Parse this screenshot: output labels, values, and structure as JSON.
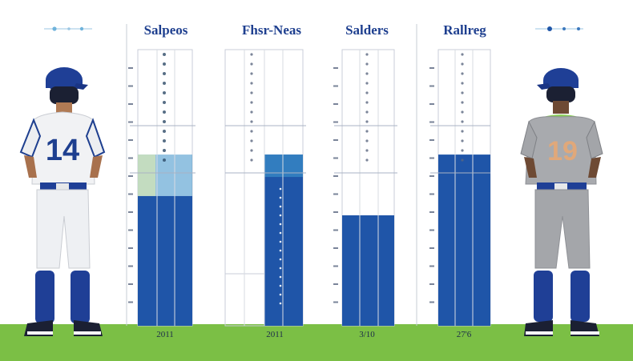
{
  "headers": [
    "Salpeos",
    "Fhsr-Neas",
    "Salders",
    "Rallreg"
  ],
  "footers": [
    "2011",
    "2011",
    "3/10",
    "27'6"
  ],
  "players": [
    {
      "number": "14",
      "uniform": "white",
      "cap": "blue"
    },
    {
      "number": "19",
      "uniform": "gray",
      "cap": "blue"
    }
  ],
  "columns": [
    {
      "fill_level": 0.47,
      "tint_level": 0.62
    },
    {
      "fill_level": 0.62,
      "tint_level": 0
    },
    {
      "fill_level": 0.4,
      "tint_level": 0
    },
    {
      "fill_level": 0.62,
      "tint_level": 0
    }
  ],
  "colors": {
    "blue": "#1f55a8",
    "light_blue": "#3b8fc9",
    "navy": "#1e3f8f",
    "grass": "#7bbf45",
    "gray_uniform": "#a8aaae",
    "lime_collar": "#8ccf5a"
  }
}
